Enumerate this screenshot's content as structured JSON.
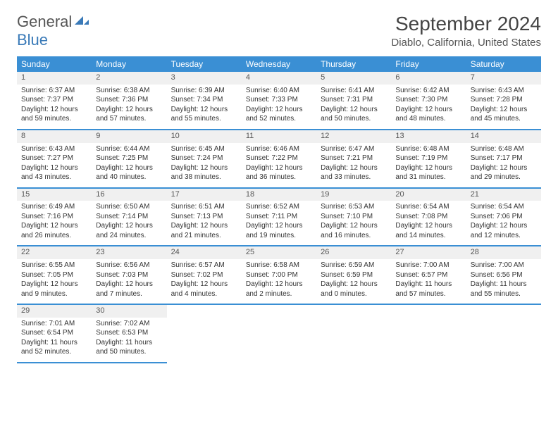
{
  "logo": {
    "word1": "General",
    "word2": "Blue"
  },
  "title": "September 2024",
  "location": "Diablo, California, United States",
  "colors": {
    "header_bg": "#3a8fd4",
    "logo_blue": "#3a7ab8",
    "text": "#333333",
    "num_bar_bg": "#f0f0f0"
  },
  "day_names": [
    "Sunday",
    "Monday",
    "Tuesday",
    "Wednesday",
    "Thursday",
    "Friday",
    "Saturday"
  ],
  "weeks": [
    [
      {
        "n": "1",
        "sr": "Sunrise: 6:37 AM",
        "ss": "Sunset: 7:37 PM",
        "d1": "Daylight: 12 hours",
        "d2": "and 59 minutes."
      },
      {
        "n": "2",
        "sr": "Sunrise: 6:38 AM",
        "ss": "Sunset: 7:36 PM",
        "d1": "Daylight: 12 hours",
        "d2": "and 57 minutes."
      },
      {
        "n": "3",
        "sr": "Sunrise: 6:39 AM",
        "ss": "Sunset: 7:34 PM",
        "d1": "Daylight: 12 hours",
        "d2": "and 55 minutes."
      },
      {
        "n": "4",
        "sr": "Sunrise: 6:40 AM",
        "ss": "Sunset: 7:33 PM",
        "d1": "Daylight: 12 hours",
        "d2": "and 52 minutes."
      },
      {
        "n": "5",
        "sr": "Sunrise: 6:41 AM",
        "ss": "Sunset: 7:31 PM",
        "d1": "Daylight: 12 hours",
        "d2": "and 50 minutes."
      },
      {
        "n": "6",
        "sr": "Sunrise: 6:42 AM",
        "ss": "Sunset: 7:30 PM",
        "d1": "Daylight: 12 hours",
        "d2": "and 48 minutes."
      },
      {
        "n": "7",
        "sr": "Sunrise: 6:43 AM",
        "ss": "Sunset: 7:28 PM",
        "d1": "Daylight: 12 hours",
        "d2": "and 45 minutes."
      }
    ],
    [
      {
        "n": "8",
        "sr": "Sunrise: 6:43 AM",
        "ss": "Sunset: 7:27 PM",
        "d1": "Daylight: 12 hours",
        "d2": "and 43 minutes."
      },
      {
        "n": "9",
        "sr": "Sunrise: 6:44 AM",
        "ss": "Sunset: 7:25 PM",
        "d1": "Daylight: 12 hours",
        "d2": "and 40 minutes."
      },
      {
        "n": "10",
        "sr": "Sunrise: 6:45 AM",
        "ss": "Sunset: 7:24 PM",
        "d1": "Daylight: 12 hours",
        "d2": "and 38 minutes."
      },
      {
        "n": "11",
        "sr": "Sunrise: 6:46 AM",
        "ss": "Sunset: 7:22 PM",
        "d1": "Daylight: 12 hours",
        "d2": "and 36 minutes."
      },
      {
        "n": "12",
        "sr": "Sunrise: 6:47 AM",
        "ss": "Sunset: 7:21 PM",
        "d1": "Daylight: 12 hours",
        "d2": "and 33 minutes."
      },
      {
        "n": "13",
        "sr": "Sunrise: 6:48 AM",
        "ss": "Sunset: 7:19 PM",
        "d1": "Daylight: 12 hours",
        "d2": "and 31 minutes."
      },
      {
        "n": "14",
        "sr": "Sunrise: 6:48 AM",
        "ss": "Sunset: 7:17 PM",
        "d1": "Daylight: 12 hours",
        "d2": "and 29 minutes."
      }
    ],
    [
      {
        "n": "15",
        "sr": "Sunrise: 6:49 AM",
        "ss": "Sunset: 7:16 PM",
        "d1": "Daylight: 12 hours",
        "d2": "and 26 minutes."
      },
      {
        "n": "16",
        "sr": "Sunrise: 6:50 AM",
        "ss": "Sunset: 7:14 PM",
        "d1": "Daylight: 12 hours",
        "d2": "and 24 minutes."
      },
      {
        "n": "17",
        "sr": "Sunrise: 6:51 AM",
        "ss": "Sunset: 7:13 PM",
        "d1": "Daylight: 12 hours",
        "d2": "and 21 minutes."
      },
      {
        "n": "18",
        "sr": "Sunrise: 6:52 AM",
        "ss": "Sunset: 7:11 PM",
        "d1": "Daylight: 12 hours",
        "d2": "and 19 minutes."
      },
      {
        "n": "19",
        "sr": "Sunrise: 6:53 AM",
        "ss": "Sunset: 7:10 PM",
        "d1": "Daylight: 12 hours",
        "d2": "and 16 minutes."
      },
      {
        "n": "20",
        "sr": "Sunrise: 6:54 AM",
        "ss": "Sunset: 7:08 PM",
        "d1": "Daylight: 12 hours",
        "d2": "and 14 minutes."
      },
      {
        "n": "21",
        "sr": "Sunrise: 6:54 AM",
        "ss": "Sunset: 7:06 PM",
        "d1": "Daylight: 12 hours",
        "d2": "and 12 minutes."
      }
    ],
    [
      {
        "n": "22",
        "sr": "Sunrise: 6:55 AM",
        "ss": "Sunset: 7:05 PM",
        "d1": "Daylight: 12 hours",
        "d2": "and 9 minutes."
      },
      {
        "n": "23",
        "sr": "Sunrise: 6:56 AM",
        "ss": "Sunset: 7:03 PM",
        "d1": "Daylight: 12 hours",
        "d2": "and 7 minutes."
      },
      {
        "n": "24",
        "sr": "Sunrise: 6:57 AM",
        "ss": "Sunset: 7:02 PM",
        "d1": "Daylight: 12 hours",
        "d2": "and 4 minutes."
      },
      {
        "n": "25",
        "sr": "Sunrise: 6:58 AM",
        "ss": "Sunset: 7:00 PM",
        "d1": "Daylight: 12 hours",
        "d2": "and 2 minutes."
      },
      {
        "n": "26",
        "sr": "Sunrise: 6:59 AM",
        "ss": "Sunset: 6:59 PM",
        "d1": "Daylight: 12 hours",
        "d2": "and 0 minutes."
      },
      {
        "n": "27",
        "sr": "Sunrise: 7:00 AM",
        "ss": "Sunset: 6:57 PM",
        "d1": "Daylight: 11 hours",
        "d2": "and 57 minutes."
      },
      {
        "n": "28",
        "sr": "Sunrise: 7:00 AM",
        "ss": "Sunset: 6:56 PM",
        "d1": "Daylight: 11 hours",
        "d2": "and 55 minutes."
      }
    ],
    [
      {
        "n": "29",
        "sr": "Sunrise: 7:01 AM",
        "ss": "Sunset: 6:54 PM",
        "d1": "Daylight: 11 hours",
        "d2": "and 52 minutes."
      },
      {
        "n": "30",
        "sr": "Sunrise: 7:02 AM",
        "ss": "Sunset: 6:53 PM",
        "d1": "Daylight: 11 hours",
        "d2": "and 50 minutes."
      },
      null,
      null,
      null,
      null,
      null
    ]
  ]
}
